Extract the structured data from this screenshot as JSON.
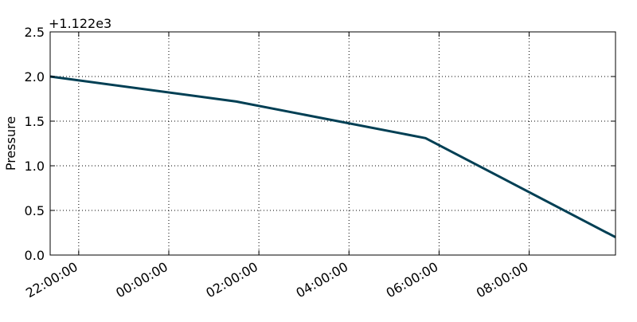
{
  "chart_data": {
    "type": "line",
    "title": "",
    "xlabel": "",
    "ylabel": "Pressure",
    "offset_text": "+1.122e3",
    "offset": 1122,
    "grid": true,
    "x_ticks": [
      "22:00:00",
      "00:00:00",
      "02:00:00",
      "04:00:00",
      "06:00:00",
      "08:00:00"
    ],
    "xlim": [
      "21:22:00",
      "09:55:00"
    ],
    "y_ticks": [
      "0.0",
      "0.5",
      "1.0",
      "1.5",
      "2.0",
      "2.5"
    ],
    "ylim": [
      0,
      2.5
    ],
    "series": [
      {
        "color": "#003f54",
        "points": [
          {
            "x": "21:22:00",
            "y": 2.0
          },
          {
            "x": "01:30:00",
            "y": 1.72
          },
          {
            "x": "05:42:00",
            "y": 1.31
          },
          {
            "x": "09:55:00",
            "y": 0.2
          }
        ]
      }
    ]
  }
}
